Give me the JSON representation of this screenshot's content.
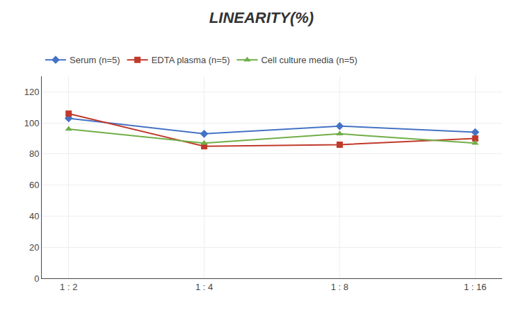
{
  "chart_data": {
    "type": "line",
    "title": "LINEARITY(%)",
    "categories": [
      "1 : 2",
      "1 : 4",
      "1 : 8",
      "1 : 16"
    ],
    "series": [
      {
        "name": "Serum (n=5)",
        "color": "#4472C4",
        "marker": "diamond",
        "values": [
          103,
          93,
          98,
          94
        ]
      },
      {
        "name": "EDTA plasma (n=5)",
        "color": "#C0392B",
        "marker": "square",
        "values": [
          106,
          85,
          86,
          90
        ]
      },
      {
        "name": "Cell culture media (n=5)",
        "color": "#70AD47",
        "marker": "triangle-up",
        "values": [
          96,
          87,
          93,
          87
        ]
      }
    ],
    "ylim": [
      0,
      130
    ],
    "yticks": [
      0,
      20,
      40,
      60,
      80,
      100,
      120
    ],
    "grid": true,
    "legend": "top"
  }
}
